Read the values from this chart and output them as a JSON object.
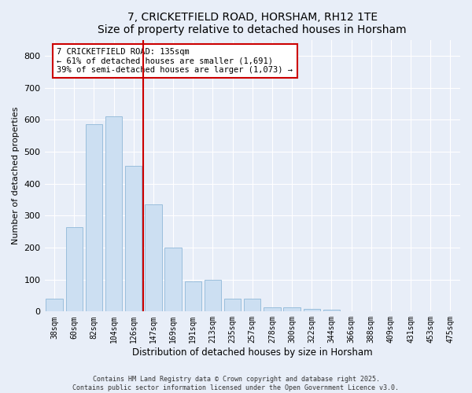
{
  "title": "7, CRICKETFIELD ROAD, HORSHAM, RH12 1TE",
  "subtitle": "Size of property relative to detached houses in Horsham",
  "xlabel": "Distribution of detached houses by size in Horsham",
  "ylabel": "Number of detached properties",
  "categories": [
    "38sqm",
    "60sqm",
    "82sqm",
    "104sqm",
    "126sqm",
    "147sqm",
    "169sqm",
    "191sqm",
    "213sqm",
    "235sqm",
    "257sqm",
    "278sqm",
    "300sqm",
    "322sqm",
    "344sqm",
    "366sqm",
    "388sqm",
    "409sqm",
    "431sqm",
    "453sqm",
    "475sqm"
  ],
  "values": [
    40,
    265,
    585,
    610,
    455,
    335,
    200,
    95,
    100,
    40,
    40,
    12,
    12,
    8,
    5,
    0,
    0,
    0,
    0,
    0,
    2
  ],
  "bar_color": "#ccdff2",
  "bar_edge_color": "#90b8d8",
  "reference_line_color": "#cc0000",
  "annotation_text": "7 CRICKETFIELD ROAD: 135sqm\n← 61% of detached houses are smaller (1,691)\n39% of semi-detached houses are larger (1,073) →",
  "annotation_box_facecolor": "#ffffff",
  "annotation_box_edgecolor": "#cc0000",
  "ylim": [
    0,
    850
  ],
  "yticks": [
    0,
    100,
    200,
    300,
    400,
    500,
    600,
    700,
    800
  ],
  "background_color": "#e8eef8",
  "plot_background_color": "#e8eef8",
  "grid_color": "#ffffff",
  "title_fontsize": 10,
  "footer_text": "Contains HM Land Registry data © Crown copyright and database right 2025.\nContains public sector information licensed under the Open Government Licence v3.0."
}
